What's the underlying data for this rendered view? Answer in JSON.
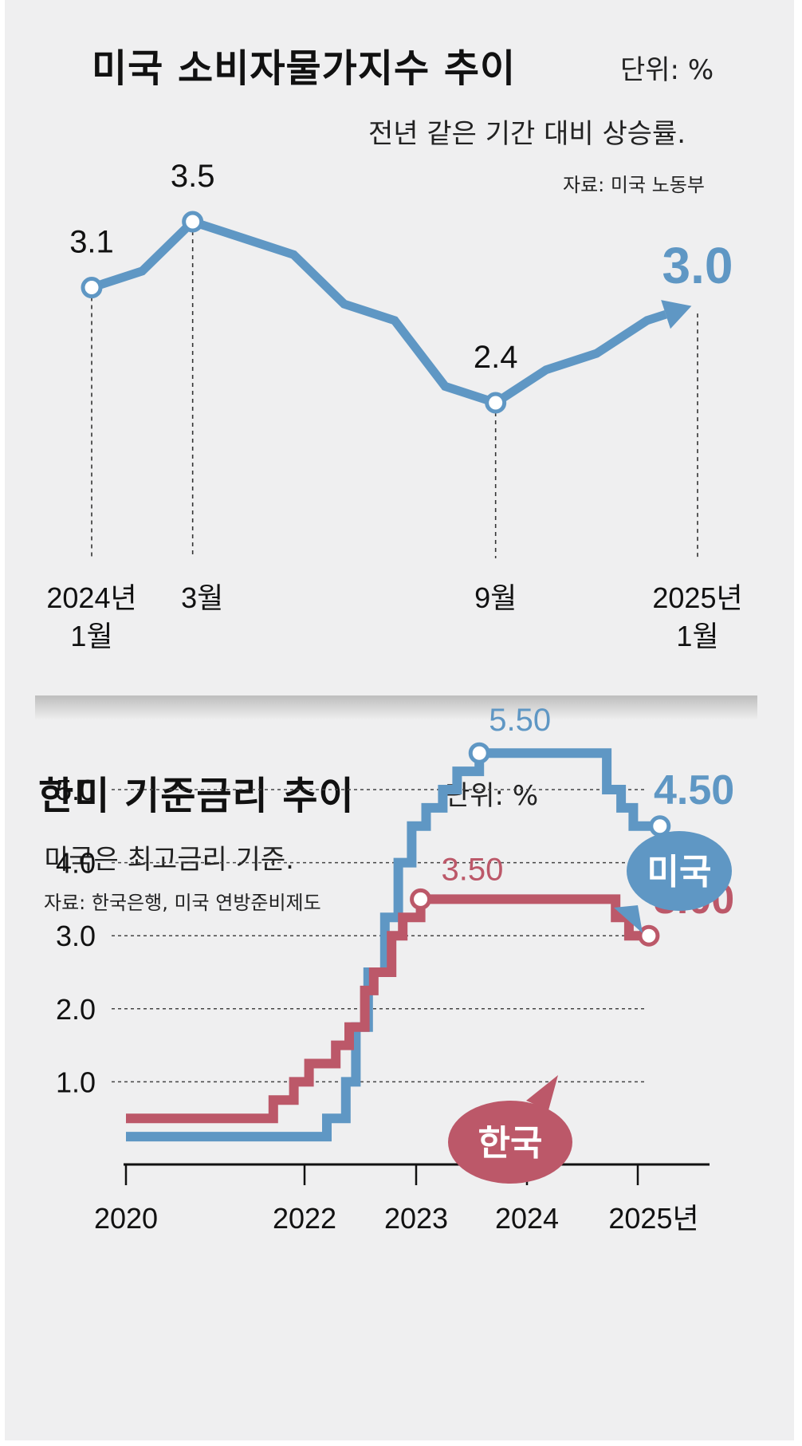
{
  "chart_data": [
    {
      "type": "line",
      "title": "미국 소비자물가지수 추이",
      "unit": "단위: %",
      "subtitle": "전년 같은 기간 대비 상승률.",
      "source": "자료: 미국 노동부",
      "x_labels": [
        "2024년 1월",
        "3월",
        "9월",
        "2025년 1월"
      ],
      "x": [
        "2024-01",
        "2024-02",
        "2024-03",
        "2024-04",
        "2024-05",
        "2024-06",
        "2024-07",
        "2024-08",
        "2024-09",
        "2024-10",
        "2024-11",
        "2024-12",
        "2025-01"
      ],
      "values": [
        3.1,
        3.2,
        3.5,
        3.4,
        3.3,
        3.0,
        2.9,
        2.5,
        2.4,
        2.6,
        2.7,
        2.9,
        3.0
      ],
      "highlight": [
        {
          "index": 0,
          "label": "3.1"
        },
        {
          "index": 2,
          "label": "3.5"
        },
        {
          "index": 8,
          "label": "2.4"
        },
        {
          "index": 12,
          "label": "3.0"
        }
      ],
      "ylim": [
        2.3,
        3.6
      ],
      "color": "#5f97c4"
    },
    {
      "type": "line",
      "title": "한미 기준금리 추이",
      "unit": "단위: %",
      "subtitle": "미국은 최고금리 기준.",
      "source": "자료: 한국은행, 미국 연방준비제도",
      "y_ticks": [
        "1.0",
        "2.0",
        "3.0",
        "4.0",
        "5.0"
      ],
      "x_ticks": [
        "2020",
        "2022",
        "2023",
        "2024",
        "2025년"
      ],
      "ylim": [
        0,
        5.6
      ],
      "grid": true,
      "series": [
        {
          "name": "미국",
          "color": "#5f97c4",
          "end_label": "4.50",
          "peak_label": "5.50",
          "steps": [
            [
              2020.0,
              0.25
            ],
            [
              2022.2,
              0.5
            ],
            [
              2022.37,
              1.0
            ],
            [
              2022.46,
              1.75
            ],
            [
              2022.57,
              2.5
            ],
            [
              2022.72,
              3.25
            ],
            [
              2022.84,
              4.0
            ],
            [
              2022.96,
              4.5
            ],
            [
              2023.09,
              4.75
            ],
            [
              2023.24,
              5.0
            ],
            [
              2023.37,
              5.25
            ],
            [
              2023.57,
              5.5
            ],
            [
              2024.72,
              5.0
            ],
            [
              2024.85,
              4.75
            ],
            [
              2024.96,
              4.5
            ],
            [
              2025.2,
              4.5
            ]
          ]
        },
        {
          "name": "한국",
          "color": "#bc5869",
          "end_label": "3.00",
          "peak_label": "3.50",
          "steps": [
            [
              2020.0,
              0.5
            ],
            [
              2021.65,
              0.75
            ],
            [
              2021.88,
              1.0
            ],
            [
              2022.04,
              1.25
            ],
            [
              2022.28,
              1.5
            ],
            [
              2022.4,
              1.75
            ],
            [
              2022.54,
              2.25
            ],
            [
              2022.62,
              2.5
            ],
            [
              2022.78,
              3.0
            ],
            [
              2022.88,
              3.25
            ],
            [
              2023.04,
              3.5
            ],
            [
              2024.8,
              3.25
            ],
            [
              2024.92,
              3.0
            ],
            [
              2025.1,
              3.0
            ]
          ]
        }
      ]
    }
  ]
}
